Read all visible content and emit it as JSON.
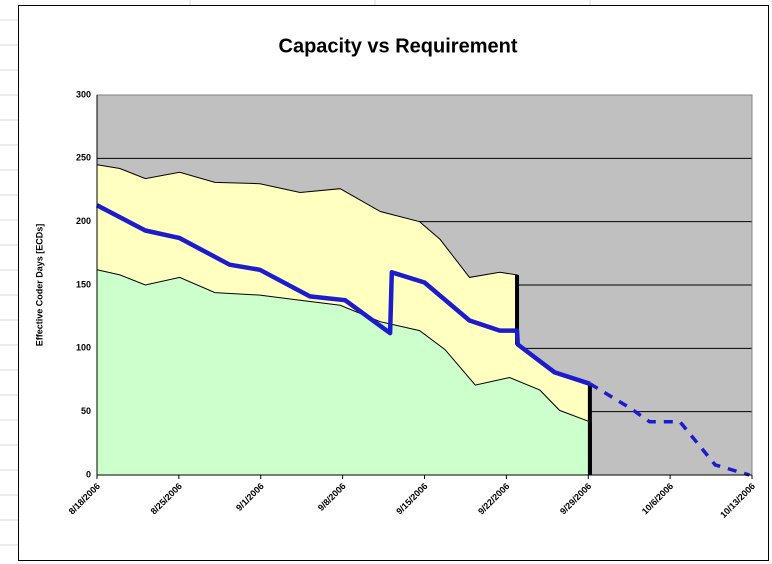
{
  "chart_data": {
    "type": "area",
    "title": "Capacity vs Requirement",
    "y_label": "Effective Coder Days [ECDs]",
    "xlim": [
      0,
      8
    ],
    "xticks": [
      {
        "value": 0,
        "label": "8/18/2006"
      },
      {
        "value": 1,
        "label": "8/25/2006"
      },
      {
        "value": 2,
        "label": "9/1/2006"
      },
      {
        "value": 3,
        "label": "9/8/2006"
      },
      {
        "value": 4,
        "label": "9/15/2006"
      },
      {
        "value": 5,
        "label": "9/22/2006"
      },
      {
        "value": 6,
        "label": "9/29/2006"
      },
      {
        "value": 7,
        "label": "10/6/2006"
      },
      {
        "value": 8,
        "label": "10/13/2006"
      }
    ],
    "ylim": [
      0,
      300
    ],
    "yticks": [
      0,
      50,
      100,
      150,
      200,
      250,
      300
    ],
    "grid": true,
    "plot_background": "#c0c0c0",
    "series": [
      {
        "kind": "area",
        "color": "#ffffc0",
        "x": [
          0,
          0.28,
          0.59,
          1.01,
          1.44,
          1.99,
          2.48,
          2.97,
          3.46,
          3.94,
          4.19,
          4.55,
          4.92,
          5.13,
          5.13,
          5.59,
          6.02
        ],
        "values": [
          245,
          242,
          234,
          239,
          231,
          230,
          223,
          226,
          208,
          200,
          186,
          156,
          160,
          158,
          103,
          81,
          72
        ]
      },
      {
        "kind": "area",
        "color": "#ccffcc",
        "x": [
          0,
          0.28,
          0.59,
          1.01,
          1.44,
          1.99,
          2.48,
          2.97,
          3.46,
          3.94,
          4.25,
          4.62,
          5.04,
          5.41,
          5.65,
          6.02
        ],
        "values": [
          162,
          158,
          150,
          156,
          144,
          142,
          138,
          134,
          121,
          114,
          99,
          71,
          77,
          67,
          51,
          42
        ]
      },
      {
        "kind": "line",
        "color": "#1c1ccc",
        "x": [
          0,
          0.59,
          1.01,
          1.62,
          1.99,
          2.6,
          3.03,
          3.58,
          3.6,
          4.0,
          4.55,
          4.92,
          5.13,
          5.14,
          5.59,
          6.02
        ],
        "values": [
          213,
          193,
          187,
          166,
          162,
          141,
          138,
          112,
          160,
          152,
          122,
          114,
          114,
          103,
          81,
          72
        ]
      },
      {
        "kind": "dashed",
        "color": "#1c1ccc",
        "x": [
          6.02,
          6.51,
          6.75,
          7.12,
          7.55,
          7.97
        ],
        "values": [
          72,
          53,
          42,
          42,
          8,
          0
        ]
      }
    ]
  }
}
